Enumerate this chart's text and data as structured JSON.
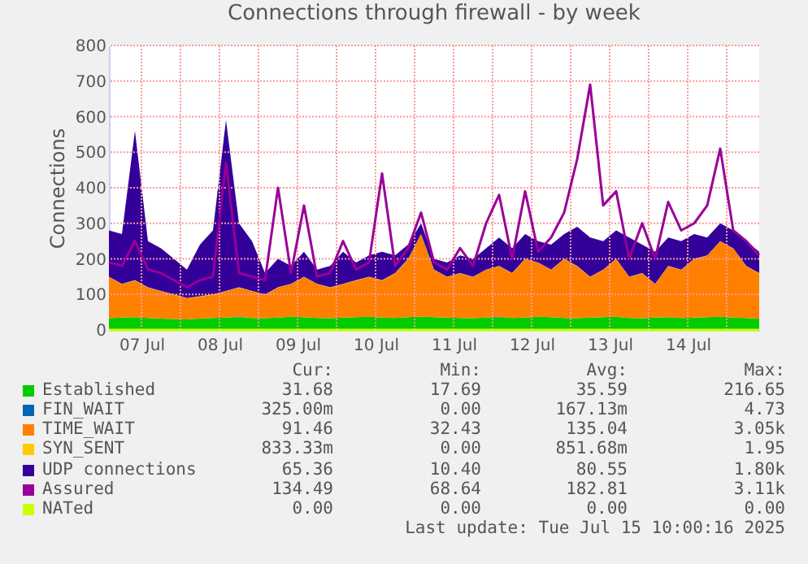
{
  "chart_data": {
    "type": "area",
    "stacked": true,
    "title": "Connections through firewall - by week",
    "ylabel": "Connections",
    "x": [
      "2025-07-07T02:00",
      "2025-07-07T06:00",
      "2025-07-07T10:00",
      "2025-07-07T14:00",
      "2025-07-07T18:00",
      "2025-07-07T22:00",
      "2025-07-08T02:00",
      "2025-07-08T06:00",
      "2025-07-08T10:00",
      "2025-07-08T14:00",
      "2025-07-08T18:00",
      "2025-07-08T22:00",
      "2025-07-09T02:00",
      "2025-07-09T06:00",
      "2025-07-09T10:00",
      "2025-07-09T14:00",
      "2025-07-09T18:00",
      "2025-07-09T22:00",
      "2025-07-10T02:00",
      "2025-07-10T06:00",
      "2025-07-10T10:00",
      "2025-07-10T14:00",
      "2025-07-10T18:00",
      "2025-07-10T22:00",
      "2025-07-11T02:00",
      "2025-07-11T06:00",
      "2025-07-11T10:00",
      "2025-07-11T14:00",
      "2025-07-11T18:00",
      "2025-07-11T22:00",
      "2025-07-12T02:00",
      "2025-07-12T06:00",
      "2025-07-12T10:00",
      "2025-07-12T14:00",
      "2025-07-12T18:00",
      "2025-07-12T22:00",
      "2025-07-13T02:00",
      "2025-07-13T06:00",
      "2025-07-13T10:00",
      "2025-07-13T14:00",
      "2025-07-13T18:00",
      "2025-07-13T22:00",
      "2025-07-14T02:00",
      "2025-07-14T06:00",
      "2025-07-14T10:00",
      "2025-07-14T14:00",
      "2025-07-14T18:00",
      "2025-07-14T22:00",
      "2025-07-15T02:00",
      "2025-07-15T06:00",
      "2025-07-15T10:00"
    ],
    "xlim": [
      "2025-07-07T02:00",
      "2025-07-15T10:00"
    ],
    "xticks": [
      {
        "value": "2025-07-07T12:00",
        "label": "07 Jul"
      },
      {
        "value": "2025-07-08T00:00",
        "label": null
      },
      {
        "value": "2025-07-08T12:00",
        "label": "08 Jul"
      },
      {
        "value": "2025-07-09T00:00",
        "label": null
      },
      {
        "value": "2025-07-09T12:00",
        "label": "09 Jul"
      },
      {
        "value": "2025-07-10T00:00",
        "label": null
      },
      {
        "value": "2025-07-10T12:00",
        "label": "10 Jul"
      },
      {
        "value": "2025-07-11T00:00",
        "label": null
      },
      {
        "value": "2025-07-11T12:00",
        "label": "11 Jul"
      },
      {
        "value": "2025-07-12T00:00",
        "label": null
      },
      {
        "value": "2025-07-12T12:00",
        "label": "12 Jul"
      },
      {
        "value": "2025-07-13T00:00",
        "label": null
      },
      {
        "value": "2025-07-13T12:00",
        "label": "13 Jul"
      },
      {
        "value": "2025-07-14T00:00",
        "label": null
      },
      {
        "value": "2025-07-14T12:00",
        "label": "14 Jul"
      },
      {
        "value": "2025-07-15T00:00",
        "label": null
      }
    ],
    "ylim": [
      0,
      800
    ],
    "yticks": [
      0,
      100,
      200,
      300,
      400,
      500,
      600,
      700,
      800
    ],
    "grid": true,
    "legend": "bottom left",
    "series": [
      {
        "name": "Established",
        "color": "#00cc00",
        "values": [
          33,
          35,
          36,
          34,
          32,
          31,
          30,
          32,
          34,
          35,
          36,
          34,
          33,
          35,
          37,
          36,
          34,
          33,
          35,
          36,
          37,
          35,
          34,
          36,
          38,
          36,
          35,
          34,
          33,
          35,
          36,
          34,
          35,
          37,
          36,
          34,
          33,
          35,
          36,
          37,
          34,
          33,
          35,
          36,
          34,
          35,
          36,
          37,
          35,
          34,
          32
        ]
      },
      {
        "name": "FIN_WAIT",
        "color": "#0066b3",
        "values": [
          0,
          0,
          0,
          0,
          0,
          0,
          0,
          0,
          0,
          0,
          1,
          0,
          0,
          0,
          0,
          0,
          0,
          0,
          0,
          0,
          0,
          0,
          0,
          0,
          0,
          0,
          0,
          0,
          0,
          0,
          1,
          0,
          0,
          0,
          0,
          0,
          0,
          0,
          0,
          0,
          0,
          0,
          0,
          0,
          0,
          0,
          0,
          0,
          0,
          0,
          0
        ]
      },
      {
        "name": "TIME_WAIT",
        "color": "#ff8000",
        "values": [
          116,
          94,
          103,
          85,
          77,
          68,
          59,
          62,
          65,
          74,
          82,
          75,
          66,
          84,
          92,
          113,
          95,
          86,
          94,
          103,
          112,
          104,
          125,
          163,
          231,
          133,
          114,
          125,
          116,
          134,
          142,
          125,
          164,
          152,
          133,
          165,
          146,
          114,
          133,
          162,
          115,
          126,
          94,
          143,
          135,
          164,
          173,
          212,
          194,
          145,
          127
        ]
      },
      {
        "name": "SYN_SENT",
        "color": "#ffcc00",
        "values": [
          1,
          1,
          1,
          1,
          1,
          1,
          1,
          1,
          1,
          1,
          1,
          1,
          1,
          1,
          1,
          1,
          1,
          1,
          1,
          1,
          1,
          1,
          1,
          1,
          1,
          1,
          1,
          1,
          1,
          1,
          1,
          1,
          1,
          1,
          1,
          1,
          1,
          1,
          1,
          1,
          1,
          1,
          1,
          1,
          1,
          1,
          1,
          1,
          1,
          1,
          1
        ]
      },
      {
        "name": "UDP connections",
        "color": "#330099",
        "values": [
          130,
          140,
          420,
          130,
          120,
          100,
          80,
          145,
          180,
          480,
          180,
          140,
          60,
          80,
          50,
          70,
          40,
          60,
          90,
          50,
          60,
          80,
          50,
          40,
          30,
          30,
          40,
          50,
          50,
          60,
          80,
          70,
          70,
          60,
          70,
          70,
          110,
          110,
          80,
          80,
          110,
          80,
          90,
          80,
          80,
          70,
          50,
          50,
          50,
          70,
          60
        ]
      },
      {
        "name": "Assured",
        "type": "line",
        "color": "#990099",
        "values": [
          190,
          180,
          250,
          170,
          160,
          140,
          120,
          140,
          150,
          470,
          160,
          150,
          140,
          400,
          160,
          350,
          150,
          160,
          250,
          170,
          190,
          440,
          180,
          230,
          330,
          190,
          170,
          230,
          180,
          300,
          380,
          200,
          390,
          220,
          260,
          330,
          480,
          690,
          350,
          390,
          200,
          300,
          200,
          360,
          280,
          300,
          350,
          510,
          280,
          250,
          210
        ]
      },
      {
        "name": "NATed",
        "type": "line",
        "color": "#ccff00",
        "values": [
          0,
          0,
          0,
          0,
          0,
          0,
          0,
          0,
          0,
          0,
          0,
          0,
          0,
          0,
          0,
          0,
          0,
          0,
          0,
          0,
          0,
          0,
          0,
          0,
          0,
          0,
          0,
          0,
          0,
          0,
          0,
          0,
          0,
          0,
          0,
          0,
          0,
          0,
          0,
          0,
          0,
          0,
          0,
          0,
          0,
          0,
          0,
          0,
          0,
          0,
          0
        ]
      }
    ],
    "annotations": [
      "Cur:",
      "Min:",
      "Avg:",
      "Max:",
      "31.68",
      "17.69",
      "35.59",
      "216.65",
      "325.00m",
      "0.00",
      "167.13m",
      "4.73",
      "91.46",
      "32.43",
      "135.04",
      "3.05k",
      "833.33m",
      "0.00",
      "851.68m",
      "1.95",
      "65.36",
      "10.40",
      "80.55",
      "1.80k",
      "134.49",
      "68.64",
      "182.81",
      "3.11k",
      "0.00",
      "0.00",
      "0.00",
      "0.00",
      "Last update: Tue Jul 15 10:00:16 2025"
    ]
  }
}
